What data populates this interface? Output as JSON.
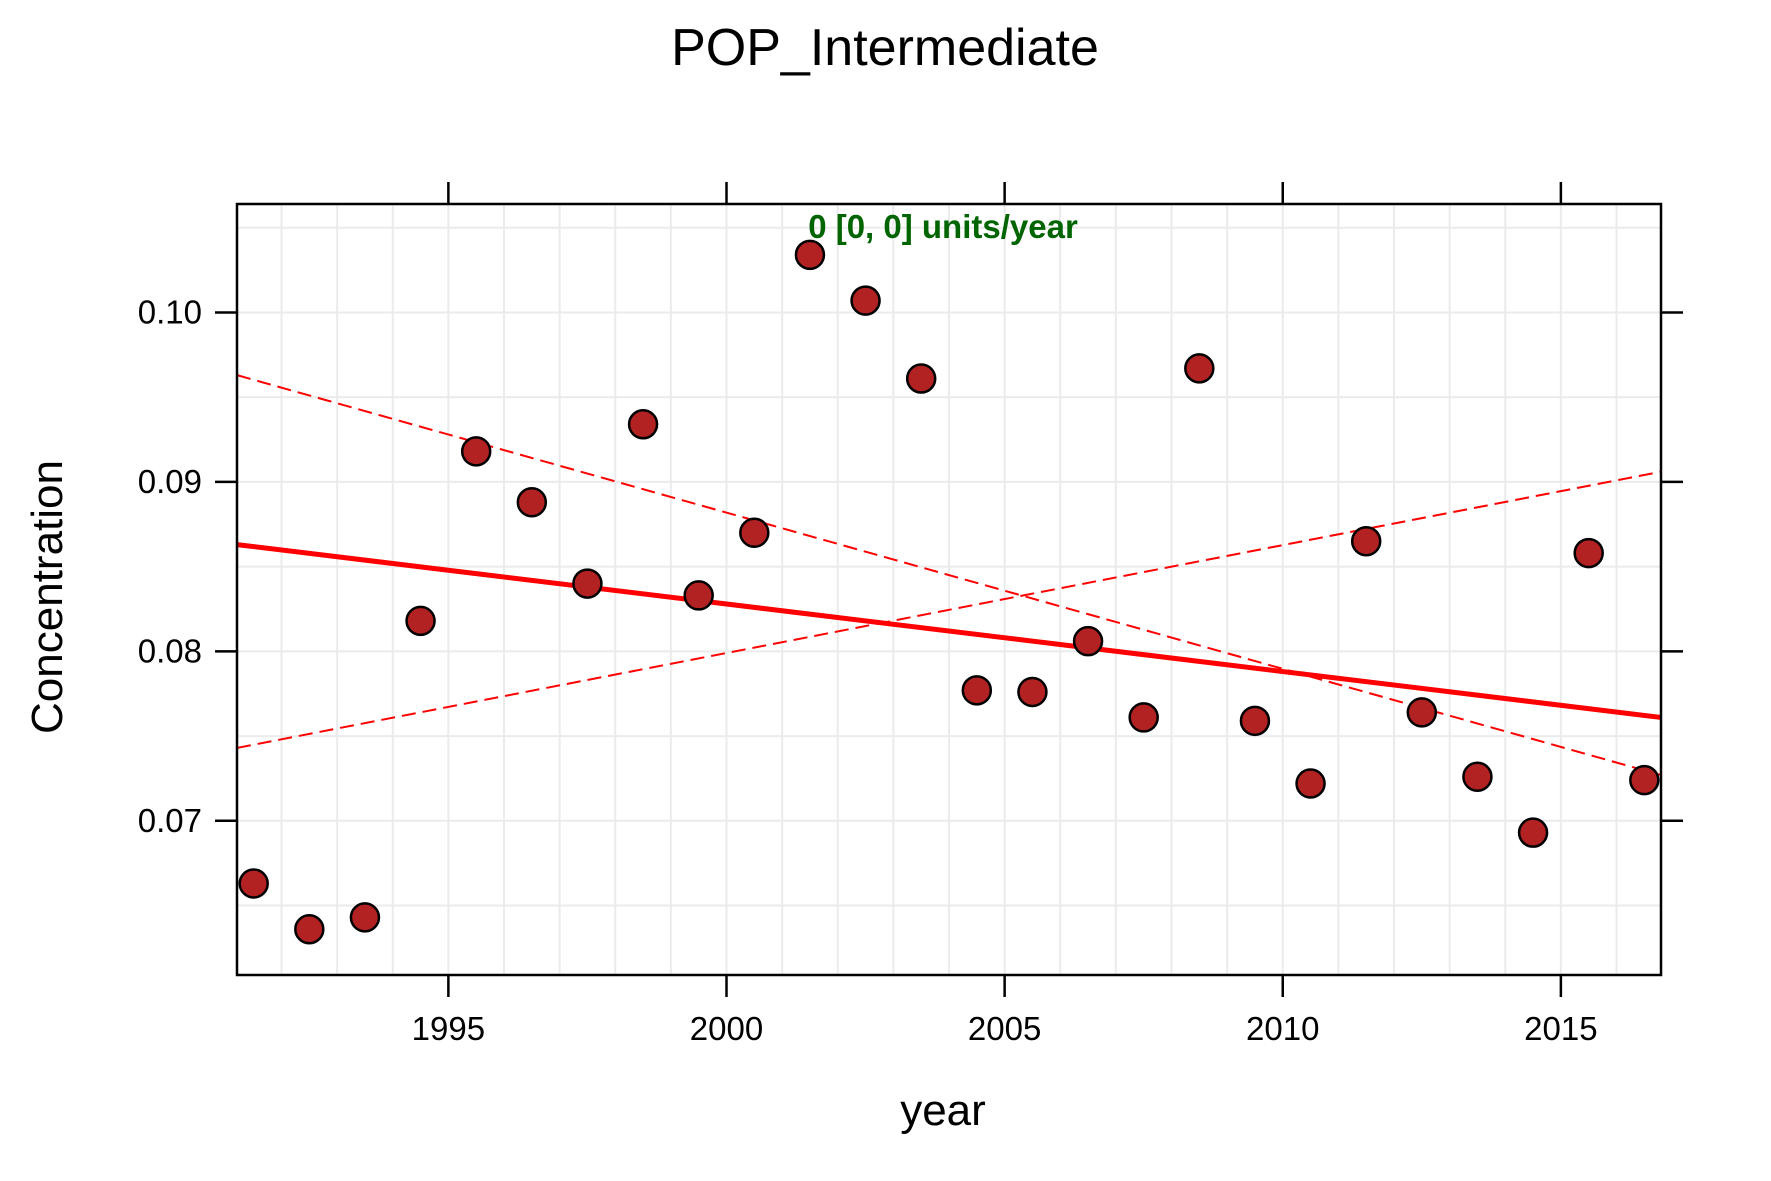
{
  "chart_data": {
    "type": "scatter",
    "title": "POP_Intermediate",
    "xlabel": "year",
    "ylabel": "Concentration",
    "annotation": "0 [0, 0] units/year",
    "xlim": [
      1991.2,
      2016.8
    ],
    "ylim": [
      0.0609,
      0.1064
    ],
    "x_ticks": [
      1995,
      2000,
      2005,
      2010,
      2015
    ],
    "x_tick_labels": [
      "1995",
      "2000",
      "2005",
      "2010",
      "2015"
    ],
    "y_ticks": [
      0.07,
      0.08,
      0.09,
      0.1
    ],
    "y_tick_labels": [
      "0.07",
      "0.08",
      "0.09",
      "0.10"
    ],
    "grid": true,
    "points": [
      {
        "x": 1991.5,
        "y": 0.0663
      },
      {
        "x": 1992.5,
        "y": 0.0636
      },
      {
        "x": 1993.5,
        "y": 0.0643
      },
      {
        "x": 1994.5,
        "y": 0.0818
      },
      {
        "x": 1995.5,
        "y": 0.0918
      },
      {
        "x": 1996.5,
        "y": 0.0888
      },
      {
        "x": 1997.5,
        "y": 0.084
      },
      {
        "x": 1998.5,
        "y": 0.0934
      },
      {
        "x": 1999.5,
        "y": 0.0833
      },
      {
        "x": 2000.5,
        "y": 0.087
      },
      {
        "x": 2001.5,
        "y": 0.1034
      },
      {
        "x": 2002.5,
        "y": 0.1007
      },
      {
        "x": 2003.5,
        "y": 0.0961
      },
      {
        "x": 2004.5,
        "y": 0.0777
      },
      {
        "x": 2005.5,
        "y": 0.0776
      },
      {
        "x": 2006.5,
        "y": 0.0806
      },
      {
        "x": 2007.5,
        "y": 0.0761
      },
      {
        "x": 2008.5,
        "y": 0.0967
      },
      {
        "x": 2009.5,
        "y": 0.0759
      },
      {
        "x": 2010.5,
        "y": 0.0722
      },
      {
        "x": 2011.5,
        "y": 0.0865
      },
      {
        "x": 2012.5,
        "y": 0.0764
      },
      {
        "x": 2013.5,
        "y": 0.0726
      },
      {
        "x": 2014.5,
        "y": 0.0693
      },
      {
        "x": 2015.5,
        "y": 0.0858
      },
      {
        "x": 2016.5,
        "y": 0.0724
      }
    ],
    "trend_line": {
      "x": [
        1991.2,
        2016.8
      ],
      "y": [
        0.0863,
        0.0761
      ]
    },
    "confidence_lines": [
      {
        "x": [
          1991.2,
          2016.8
        ],
        "y": [
          0.0963,
          0.0727
        ]
      },
      {
        "x": [
          1991.2,
          2016.8
        ],
        "y": [
          0.0743,
          0.0906
        ]
      }
    ],
    "colors": {
      "point_fill": "#b22222",
      "point_stroke": "#000000",
      "trend": "#ff0000",
      "annotation": "#006400",
      "grid": "#ebebeb"
    }
  }
}
